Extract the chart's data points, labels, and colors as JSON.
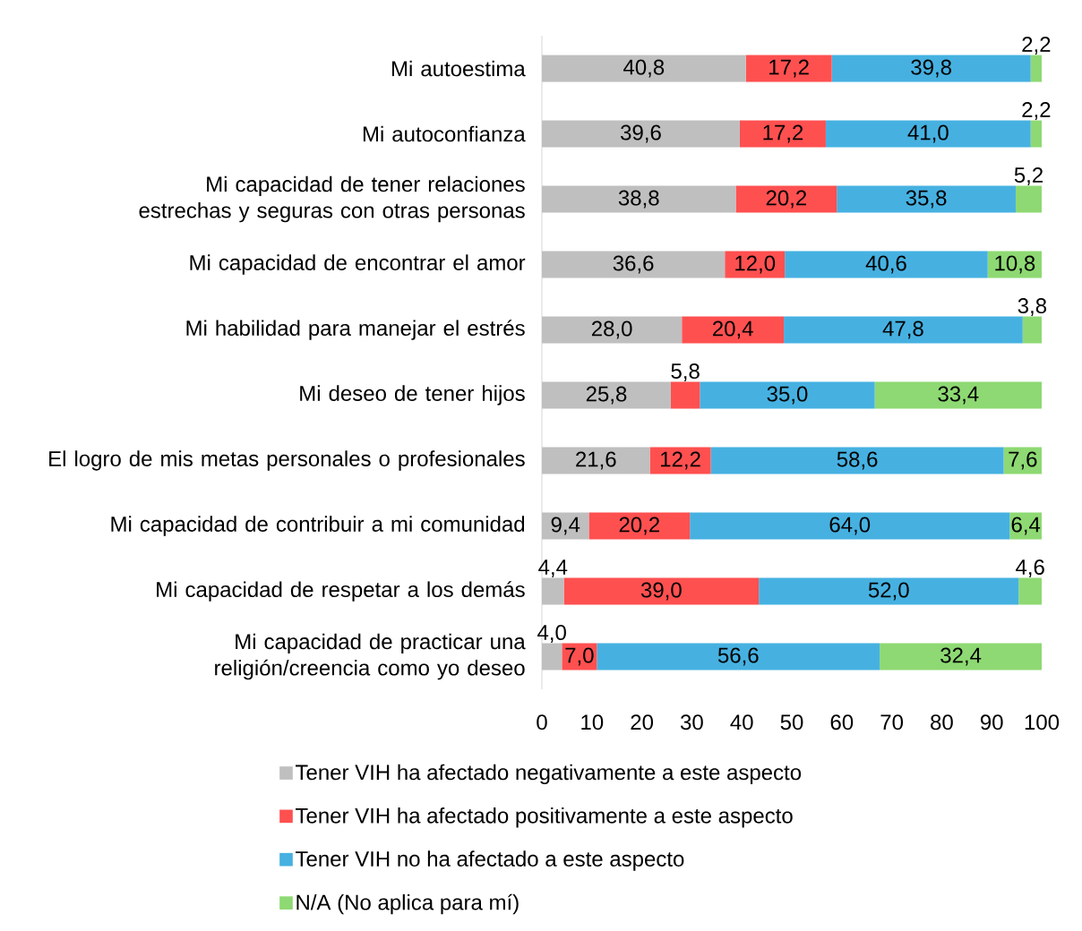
{
  "chart_data": {
    "type": "bar",
    "orientation": "horizontal",
    "stacked": true,
    "categories": [
      "Mi autoestima",
      "Mi autoconfianza",
      "Mi capacidad de tener relaciones estrechas y seguras con otras personas",
      "Mi capacidad de encontrar el amor",
      "Mi habilidad para manejar el estrés",
      "Mi deseo de tener hijos",
      "El logro de mis metas personales o profesionales",
      "Mi capacidad de contribuir a mi comunidad",
      "Mi capacidad de respetar a los demás",
      "Mi capacidad de practicar una religión/creencia como yo deseo"
    ],
    "series": [
      {
        "name": "Tener VIH ha afectado negativamente a este aspecto",
        "color": "#bfbfbf",
        "values": [
          40.8,
          39.6,
          38.8,
          36.6,
          28.0,
          25.8,
          21.6,
          9.4,
          4.4,
          4.0
        ],
        "value_labels": [
          "40,8",
          "39,6",
          "38,8",
          "36,6",
          "28,0",
          "25,8",
          "21,6",
          "9,4",
          "4,4",
          "4,0"
        ]
      },
      {
        "name": "Tener VIH ha afectado positivamente a este aspecto",
        "color": "#ff5050",
        "values": [
          17.2,
          17.2,
          20.2,
          12.0,
          20.4,
          5.8,
          12.2,
          20.2,
          39.0,
          7.0
        ],
        "value_labels": [
          "17,2",
          "17,2",
          "20,2",
          "12,0",
          "20,4",
          "5,8",
          "12,2",
          "20,2",
          "39,0",
          "7,0"
        ]
      },
      {
        "name": "Tener VIH no ha afectado a este aspecto",
        "color": "#46b1e1",
        "values": [
          39.8,
          41.0,
          35.8,
          40.6,
          47.8,
          35.0,
          58.6,
          64.0,
          52.0,
          56.6
        ],
        "value_labels": [
          "39,8",
          "41,0",
          "35,8",
          "40,6",
          "47,8",
          "35,0",
          "58,6",
          "64,0",
          "52,0",
          "56,6"
        ]
      },
      {
        "name": "N/A (No aplica para mí)",
        "color": "#8ed973",
        "values": [
          2.2,
          2.2,
          5.2,
          10.8,
          3.8,
          33.4,
          7.6,
          6.4,
          4.6,
          32.4
        ],
        "value_labels": [
          "2,2",
          "2,2",
          "5,2",
          "10,8",
          "3,8",
          "33,4",
          "7,6",
          "6,4",
          "4,6",
          "32,4"
        ]
      }
    ],
    "xlim": [
      0,
      100
    ],
    "xticks": [
      0,
      10,
      20,
      30,
      40,
      50,
      60,
      70,
      80,
      90,
      100
    ],
    "legend": "bottom",
    "grid": false
  }
}
